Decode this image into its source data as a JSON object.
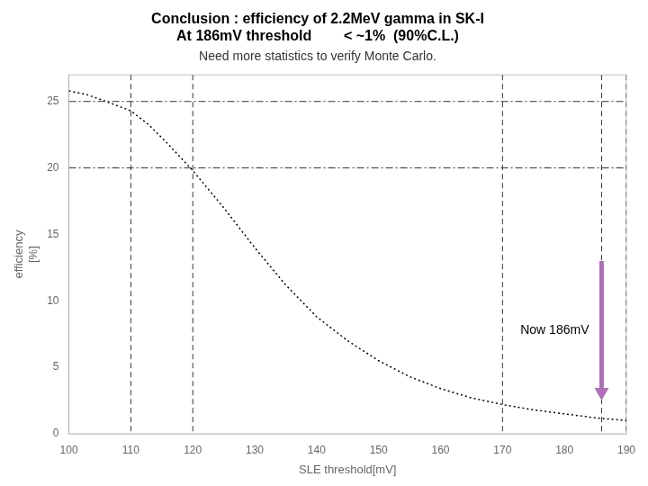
{
  "chart_data": {
    "type": "line",
    "title": [
      "Conclusion : efficiency of 2.2MeV gamma in SK-I",
      "At 186mV threshold        < ~1%  (90%C.L.)"
    ],
    "subtitle": "Need more statistics to verify Monte Carlo.",
    "xlabel": "SLE threshold[mV]",
    "ylabel": [
      "efficiency",
      "[%]"
    ],
    "x": [
      100,
      103,
      106,
      110,
      113,
      116,
      120,
      125,
      130,
      135,
      140,
      145,
      150,
      155,
      160,
      165,
      170,
      175,
      180,
      185,
      190
    ],
    "values": [
      25.8,
      25.5,
      25.0,
      24.3,
      23.2,
      21.8,
      19.8,
      17.0,
      14.0,
      11.2,
      8.8,
      7.0,
      5.5,
      4.3,
      3.4,
      2.7,
      2.2,
      1.8,
      1.5,
      1.2,
      1.0
    ],
    "color": "#000000",
    "line_style": "dotted",
    "marker": "none",
    "xlim": [
      100,
      190
    ],
    "xticks": [
      100,
      110,
      120,
      130,
      140,
      150,
      160,
      170,
      180,
      190
    ],
    "ylim": [
      0,
      27
    ],
    "yticks": [
      0,
      5,
      10,
      15,
      20,
      25
    ],
    "grid": false,
    "hlines": {
      "values": [
        25,
        20
      ],
      "color": "#333333",
      "line_style": "dashdot"
    },
    "vlines": {
      "values": [
        110,
        120,
        170,
        186,
        190
      ],
      "color": "#333333",
      "line_style": "dashed"
    },
    "annotations": [
      {
        "text": "Now 186mV",
        "x": 186,
        "y_start": 13,
        "y_end": 2.5,
        "color": "#b070b8"
      }
    ]
  }
}
